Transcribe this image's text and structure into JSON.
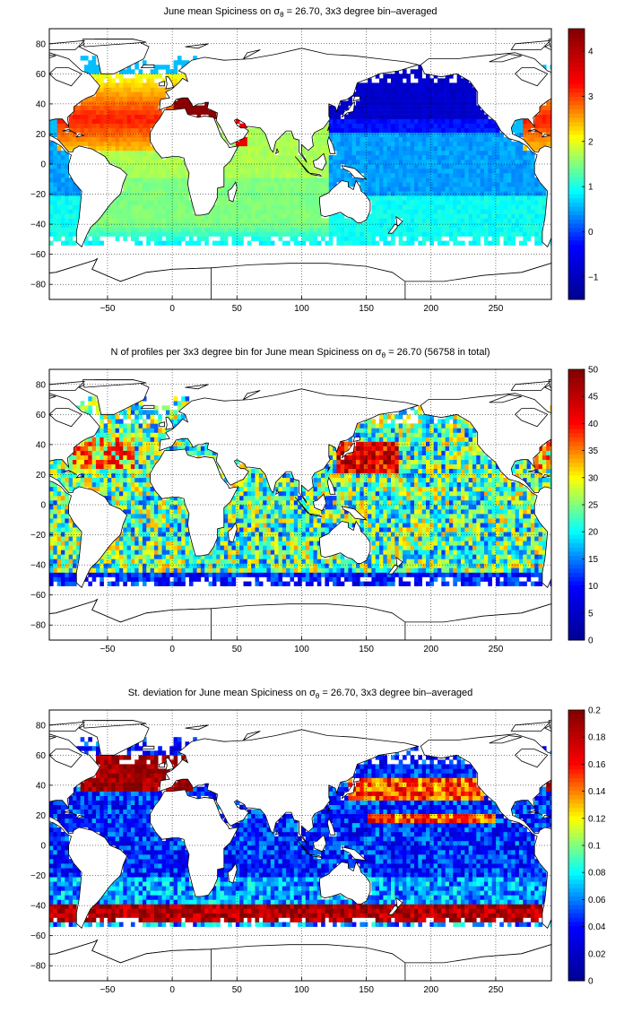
{
  "colors": {
    "jet_stops": [
      "#00008f",
      "#0000ff",
      "#00ffff",
      "#ffff00",
      "#ff0000",
      "#800000"
    ],
    "axis": "#000000",
    "land": "#ffffff",
    "background": "#ffffff"
  },
  "chart_data": [
    {
      "type": "heatmap",
      "title_prefix": "June mean Spiciness on ",
      "title_symbol": "σ",
      "title_sub": "θ",
      "title_suffix": " = 26.70, 3x3 degree bin–averaged",
      "xlabel": "",
      "ylabel": "",
      "xlim": [
        -95,
        293
      ],
      "ylim": [
        -90,
        90
      ],
      "xticks": [
        -50,
        0,
        50,
        100,
        150,
        200,
        250
      ],
      "yticks": [
        -80,
        -60,
        -40,
        -20,
        0,
        20,
        40,
        60,
        80
      ],
      "grid": true,
      "colorbar": {
        "range": [
          -1.5,
          4.5
        ],
        "ticks": [
          -1,
          0,
          1,
          2,
          3,
          4
        ]
      },
      "bin_size_deg": 3,
      "field": "spice"
    },
    {
      "type": "heatmap",
      "title_prefix": "N of profiles per 3x3 degree bin for June mean Spiciness on ",
      "title_symbol": "σ",
      "title_sub": "θ",
      "title_suffix": " = 26.70 (56758 in total)",
      "xlabel": "",
      "ylabel": "",
      "xlim": [
        -95,
        293
      ],
      "ylim": [
        -90,
        90
      ],
      "xticks": [
        -50,
        0,
        50,
        100,
        150,
        200,
        250
      ],
      "yticks": [
        -80,
        -60,
        -40,
        -20,
        0,
        20,
        40,
        60,
        80
      ],
      "grid": true,
      "colorbar": {
        "range": [
          0,
          50
        ],
        "ticks": [
          0,
          5,
          10,
          15,
          20,
          25,
          30,
          35,
          40,
          45,
          50
        ]
      },
      "bin_size_deg": 3,
      "total_profiles": 56758,
      "field": "count"
    },
    {
      "type": "heatmap",
      "title_prefix": "St. deviation for June mean Spiciness on ",
      "title_symbol": "σ",
      "title_sub": "θ",
      "title_suffix": " = 26.70, 3x3 degree bin–averaged",
      "xlabel": "",
      "ylabel": "",
      "xlim": [
        -95,
        293
      ],
      "ylim": [
        -90,
        90
      ],
      "xticks": [
        -50,
        0,
        50,
        100,
        150,
        200,
        250
      ],
      "yticks": [
        -80,
        -60,
        -40,
        -20,
        0,
        20,
        40,
        60,
        80
      ],
      "grid": true,
      "colorbar": {
        "range": [
          0,
          0.2
        ],
        "ticks": [
          0,
          0.02,
          0.04,
          0.06,
          0.08,
          0.1,
          0.12,
          0.14,
          0.16,
          0.18,
          0.2
        ]
      },
      "bin_size_deg": 3,
      "field": "std"
    }
  ]
}
